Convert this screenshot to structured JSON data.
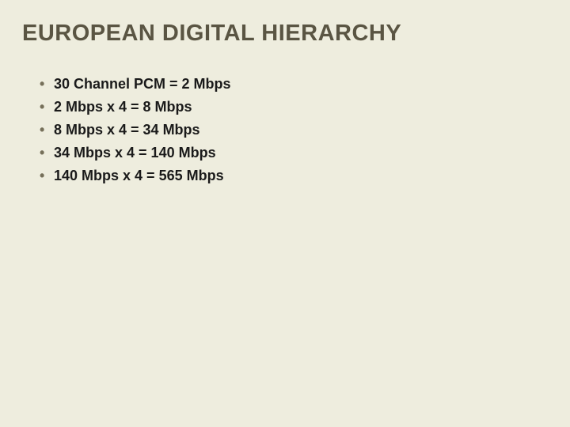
{
  "slide": {
    "title": "EUROPEAN DIGITAL HIERARCHY",
    "bullets": [
      "30 Channel PCM = 2 Mbps",
      "2 Mbps x 4 =   8 Mbps",
      "8 Mbps x 4 = 34 Mbps",
      "34 Mbps x 4 = 140 Mbps",
      "140 Mbps x 4 = 565 Mbps"
    ],
    "styling": {
      "background_color": "#eeedde",
      "title_color": "#5a5543",
      "title_fontsize": 29,
      "title_fontweight": "bold",
      "bullet_text_color": "#1a1a1a",
      "bullet_marker_color": "#76705a",
      "bullet_fontsize": 18,
      "bullet_fontweight": "bold",
      "font_family": "Verdana, Geneva, sans-serif",
      "line_height": 1.55
    }
  }
}
